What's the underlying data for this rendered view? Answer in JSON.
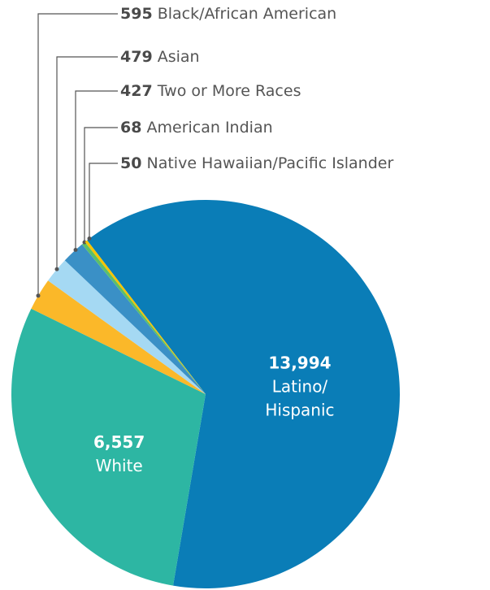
{
  "chart_data": {
    "type": "pie",
    "categories": [
      "Latino/ Hispanic",
      "White",
      "Black/African American",
      "Asian",
      "Two or More Races",
      "American Indian",
      "Native Hawaiian/Pacific Islander"
    ],
    "values": [
      13994,
      6557,
      595,
      479,
      427,
      68,
      50
    ],
    "value_labels": [
      "13,994",
      "6,557",
      "595",
      "479",
      "427",
      "68",
      "50"
    ],
    "colors": [
      "#0a7db7",
      "#2db6a3",
      "#fbb829",
      "#a5d9f3",
      "#3a90c6",
      "#5cbf6a",
      "#f6c400"
    ]
  }
}
